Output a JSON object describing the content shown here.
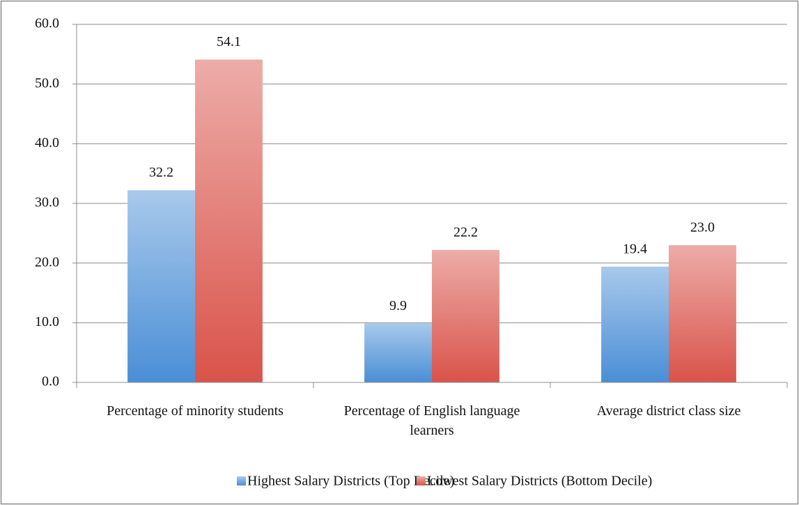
{
  "chart_data": {
    "type": "bar",
    "categories": [
      "Percentage of minority students",
      "Percentage of English language learners",
      "Average district class size"
    ],
    "series": [
      {
        "name": "Highest Salary Districts (Top Decile)",
        "color": "#4a8ed6",
        "values": [
          32.2,
          9.9,
          19.4
        ],
        "value_labels": [
          "32.2",
          "9.9",
          "19.4"
        ]
      },
      {
        "name": "Lowest Salary Districts (Bottom Decile)",
        "color": "#d9534a",
        "values": [
          54.1,
          22.2,
          23.0
        ],
        "value_labels": [
          "54.1",
          "22.2",
          "23.0"
        ]
      }
    ],
    "ylim": [
      0,
      60
    ],
    "yticks": [
      {
        "value": 0,
        "label": "0.0"
      },
      {
        "value": 10,
        "label": "10.0"
      },
      {
        "value": 20,
        "label": "20.0"
      },
      {
        "value": 30,
        "label": "30.0"
      },
      {
        "value": 40,
        "label": "40.0"
      },
      {
        "value": 50,
        "label": "50.0"
      },
      {
        "value": 60,
        "label": "60.0"
      }
    ],
    "grid": true,
    "legend": "bottom"
  }
}
